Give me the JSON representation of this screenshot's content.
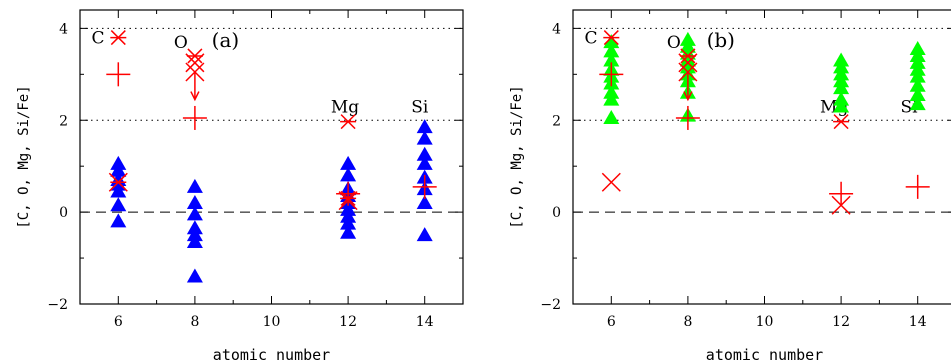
{
  "chart_data": [
    {
      "type": "scatter",
      "panel_label": "(a)",
      "xlabel": "atomic number",
      "ylabel": "[C, O, Mg, Si/Fe]",
      "xlim": [
        5,
        15
      ],
      "ylim": [
        -2,
        4.4
      ],
      "x_ticks": [
        "6",
        "8",
        "10",
        "12",
        "14"
      ],
      "y_ticks": [
        "-2",
        "0",
        "2",
        "4"
      ],
      "reference_lines": [
        {
          "y": 4,
          "style": "dotted"
        },
        {
          "y": 2,
          "style": "dotted"
        },
        {
          "y": 0,
          "style": "dashed"
        }
      ],
      "element_labels": [
        {
          "text": "C",
          "x": 5.3,
          "y": 3.8
        },
        {
          "text": "O",
          "x": 7.45,
          "y": 3.7
        },
        {
          "text": "Mg",
          "x": 11.55,
          "y": 2.3
        },
        {
          "text": "Si",
          "x": 13.65,
          "y": 2.3
        }
      ],
      "series": [
        {
          "marker": "triangle",
          "color": "#0000ff",
          "points": [
            [
              6,
              1.05
            ],
            [
              6,
              0.9
            ],
            [
              6,
              0.7
            ],
            [
              6,
              0.6
            ],
            [
              6,
              0.45
            ],
            [
              6,
              0.15
            ],
            [
              6,
              -0.2
            ],
            [
              8,
              0.55
            ],
            [
              8,
              0.2
            ],
            [
              8,
              -0.05
            ],
            [
              8,
              -0.35
            ],
            [
              8,
              -0.5
            ],
            [
              8,
              -0.65
            ],
            [
              8,
              -1.4
            ],
            [
              12,
              1.05
            ],
            [
              12,
              0.8
            ],
            [
              12,
              0.5
            ],
            [
              12,
              0.35
            ],
            [
              12,
              0.2
            ],
            [
              12,
              0.05
            ],
            [
              12,
              -0.1
            ],
            [
              12,
              -0.25
            ],
            [
              12,
              -0.45
            ],
            [
              14,
              1.85
            ],
            [
              14,
              1.6
            ],
            [
              14,
              1.25
            ],
            [
              14,
              1.05
            ],
            [
              14,
              0.75
            ],
            [
              14,
              0.5
            ],
            [
              14,
              0.2
            ],
            [
              14,
              -0.5
            ]
          ]
        },
        {
          "marker": "cross",
          "color": "#ff0000",
          "points": [
            [
              6,
              0.65
            ],
            [
              8,
              3.25
            ],
            [
              8,
              3.05
            ],
            [
              12,
              0.25
            ]
          ]
        },
        {
          "marker": "plus",
          "color": "#ff0000",
          "points": [
            [
              6,
              3.0
            ],
            [
              8,
              2.05
            ],
            [
              12,
              0.4
            ],
            [
              14,
              0.55
            ]
          ]
        },
        {
          "marker": "star",
          "color": "#ff0000",
          "points": [
            [
              6,
              3.8
            ],
            [
              6,
              0.65
            ],
            [
              8,
              3.4
            ],
            [
              12,
              1.97
            ],
            [
              12,
              0.3
            ]
          ]
        }
      ],
      "arrows": [
        {
          "x": 8,
          "y_from": 3.05,
          "y_to": 2.45,
          "color": "#ff0000"
        }
      ]
    },
    {
      "type": "scatter",
      "panel_label": "(b)",
      "xlabel": "atomic number",
      "ylabel": "[C, O, Mg, Si/Fe]",
      "xlim": [
        5,
        15
      ],
      "ylim": [
        -2,
        4.4
      ],
      "x_ticks": [
        "6",
        "8",
        "10",
        "12",
        "14"
      ],
      "y_ticks": [
        "-2",
        "0",
        "2",
        "4"
      ],
      "reference_lines": [
        {
          "y": 4,
          "style": "dotted"
        },
        {
          "y": 2,
          "style": "dotted"
        },
        {
          "y": 0,
          "style": "dashed"
        }
      ],
      "element_labels": [
        {
          "text": "C",
          "x": 5.3,
          "y": 3.8
        },
        {
          "text": "O",
          "x": 7.45,
          "y": 3.7
        },
        {
          "text": "Mg",
          "x": 11.45,
          "y": 2.3
        },
        {
          "text": "Si",
          "x": 13.55,
          "y": 2.3
        }
      ],
      "series": [
        {
          "marker": "triangle",
          "color": "#00ff00",
          "points": [
            [
              6,
              3.7
            ],
            [
              6,
              3.5
            ],
            [
              6,
              3.3
            ],
            [
              6,
              3.1
            ],
            [
              6,
              2.95
            ],
            [
              6,
              2.8
            ],
            [
              6,
              2.6
            ],
            [
              6,
              2.45
            ],
            [
              6,
              2.05
            ],
            [
              8,
              3.75
            ],
            [
              8,
              3.6
            ],
            [
              8,
              3.45
            ],
            [
              8,
              3.3
            ],
            [
              8,
              3.15
            ],
            [
              8,
              3.0
            ],
            [
              8,
              2.85
            ],
            [
              8,
              2.6
            ],
            [
              8,
              2.1
            ],
            [
              12,
              3.3
            ],
            [
              12,
              3.15
            ],
            [
              12,
              3.0
            ],
            [
              12,
              2.85
            ],
            [
              12,
              2.7
            ],
            [
              12,
              2.45
            ],
            [
              12,
              2.3
            ],
            [
              14,
              3.55
            ],
            [
              14,
              3.4
            ],
            [
              14,
              3.25
            ],
            [
              14,
              3.1
            ],
            [
              14,
              2.95
            ],
            [
              14,
              2.75
            ],
            [
              14,
              2.55
            ],
            [
              14,
              2.35
            ]
          ]
        },
        {
          "marker": "cross",
          "color": "#ff0000",
          "points": [
            [
              6,
              0.65
            ],
            [
              8,
              3.25
            ],
            [
              8,
              3.05
            ],
            [
              12,
              0.15
            ]
          ]
        },
        {
          "marker": "plus",
          "color": "#ff0000",
          "points": [
            [
              6,
              3.0
            ],
            [
              8,
              2.05
            ],
            [
              12,
              0.4
            ],
            [
              14,
              0.55
            ]
          ]
        },
        {
          "marker": "star",
          "color": "#ff0000",
          "points": [
            [
              6,
              3.8
            ],
            [
              8,
              3.4
            ],
            [
              12,
              1.97
            ]
          ]
        }
      ],
      "arrows": [
        {
          "x": 8,
          "y_from": 3.05,
          "y_to": 2.45,
          "color": "#ff0000"
        }
      ]
    }
  ]
}
